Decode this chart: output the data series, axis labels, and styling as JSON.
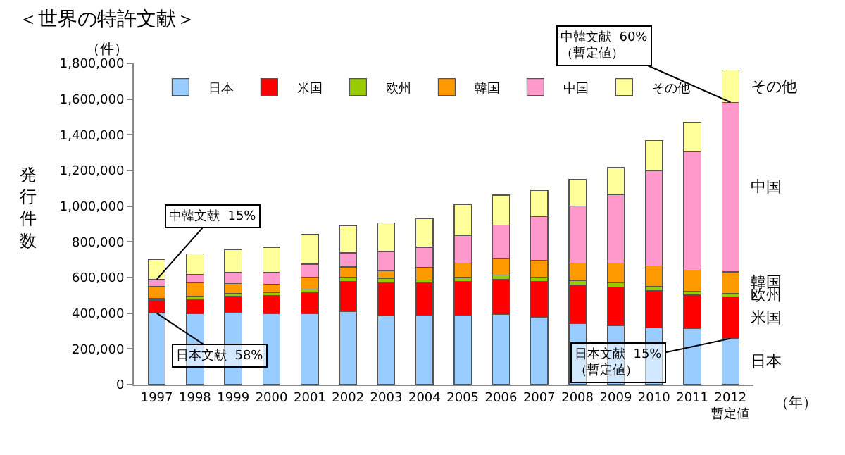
{
  "chart_data": {
    "type": "bar",
    "stacked": true,
    "title": "＜世界の特許文献＞",
    "ylabel": "発行件数",
    "grid": false,
    "legend": "top",
    "categories": [
      "1997",
      "1998",
      "1999",
      "2000",
      "2001",
      "2002",
      "2003",
      "2004",
      "2005",
      "2006",
      "2007",
      "2008",
      "2009",
      "2010",
      "2011",
      "2012\n暫定値"
    ],
    "ylim": [
      0,
      1800000
    ],
    "yticks": [
      {
        "value": 0,
        "label": "0"
      },
      {
        "value": 200000,
        "label": "200,000"
      },
      {
        "value": 400000,
        "label": "400,000"
      },
      {
        "value": 600000,
        "label": "600,000"
      },
      {
        "value": 800000,
        "label": "800,000"
      },
      {
        "value": 1000000,
        "label": "1,000,000"
      },
      {
        "value": 1200000,
        "label": "1,200,000"
      },
      {
        "value": 1400000,
        "label": "1,400,000"
      },
      {
        "value": 1600000,
        "label": "1,600,000"
      },
      {
        "value": 1800000,
        "label": "1,800,000"
      }
    ],
    "series": [
      {
        "name": "日本",
        "color": "#99ccff",
        "values": [
          400000,
          397000,
          405000,
          397000,
          397000,
          408000,
          386000,
          390000,
          390000,
          393000,
          377000,
          342000,
          332000,
          319000,
          313000,
          258000
        ]
      },
      {
        "name": "米国",
        "color": "#ff0000",
        "values": [
          74000,
          79000,
          90000,
          103000,
          119000,
          169000,
          186000,
          181000,
          189000,
          196000,
          202000,
          216000,
          215000,
          209000,
          189000,
          233000
        ]
      },
      {
        "name": "欧州",
        "color": "#99cc00",
        "values": [
          8000,
          19000,
          14000,
          16000,
          19000,
          24000,
          24000,
          16000,
          21000,
          24000,
          24000,
          23000,
          24000,
          22000,
          21000,
          21000
        ]
      },
      {
        "name": "韓国",
        "color": "#ff9900",
        "values": [
          68000,
          77000,
          58000,
          45000,
          66000,
          58000,
          42000,
          71000,
          82000,
          93000,
          95000,
          101000,
          111000,
          116000,
          117000,
          120000
        ]
      },
      {
        "name": "中国",
        "color": "#ff99cc",
        "values": [
          40000,
          47000,
          64000,
          69000,
          74000,
          79000,
          108000,
          112000,
          154000,
          189000,
          245000,
          319000,
          383000,
          534000,
          664000,
          950000
        ]
      },
      {
        "name": "その他",
        "color": "#ffff99",
        "values": [
          111000,
          114000,
          127000,
          140000,
          169000,
          151000,
          159000,
          159000,
          173000,
          167000,
          146000,
          151000,
          151000,
          167000,
          167000,
          181000
        ]
      }
    ],
    "annotations": [
      "（件）",
      "（年）",
      {
        "text": "中韓文献  15%",
        "x": "1997",
        "y": 590000
      },
      {
        "text": "日本文献  58%",
        "x": "1997",
        "y": 400000
      },
      {
        "text": "中韓文献  60%\n（暫定値）",
        "x": "2012\n暫定値",
        "y": 1582000
      },
      {
        "text": "日本文献  15%\n（暫定値）",
        "x": "2012\n暫定値",
        "y": 258000
      }
    ]
  }
}
